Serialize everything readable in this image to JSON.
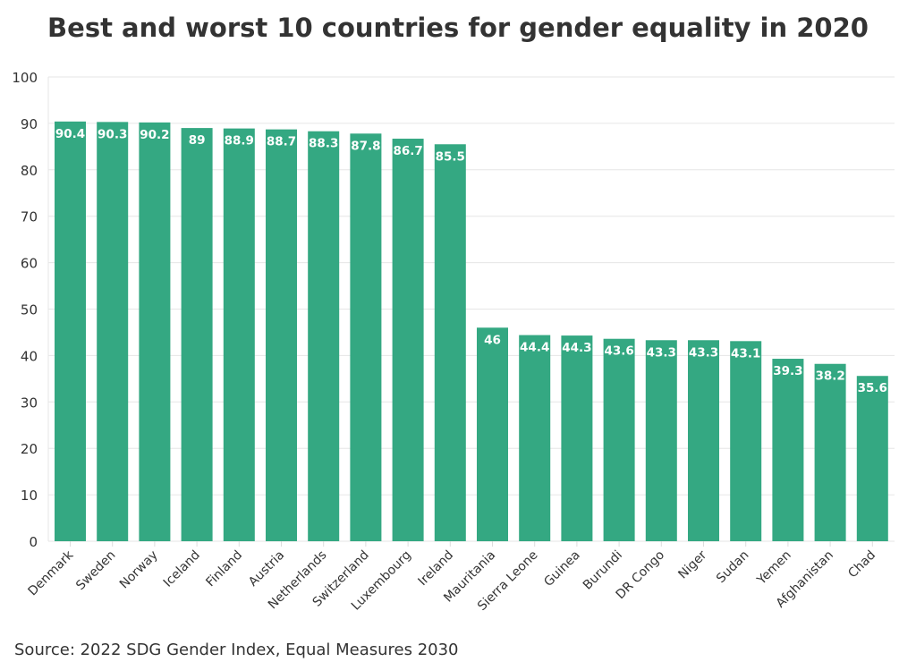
{
  "chart_data": {
    "type": "bar",
    "title": "Best and worst 10 countries for gender equality in 2020",
    "source": "Source: 2022 SDG Gender Index, Equal Measures 2030",
    "categories": [
      "Denmark",
      "Sweden",
      "Norway",
      "Iceland",
      "Finland",
      "Austria",
      "Netherlands",
      "Switzerland",
      "Luxembourg",
      "Ireland",
      "Mauritania",
      "Sierra Leone",
      "Guinea",
      "Burundi",
      "DR Congo",
      "Niger",
      "Sudan",
      "Yemen",
      "Afghanistan",
      "Chad"
    ],
    "values": [
      90.4,
      90.3,
      90.2,
      89,
      88.9,
      88.7,
      88.3,
      87.8,
      86.7,
      85.5,
      46,
      44.4,
      44.3,
      43.6,
      43.3,
      43.3,
      43.1,
      39.3,
      38.2,
      35.6
    ],
    "ylim": [
      0,
      100
    ],
    "yticks": [
      0,
      10,
      20,
      30,
      40,
      50,
      60,
      70,
      80,
      90,
      100
    ],
    "grid": true,
    "bar_color": "#34a882",
    "xlabel": "",
    "ylabel": ""
  }
}
